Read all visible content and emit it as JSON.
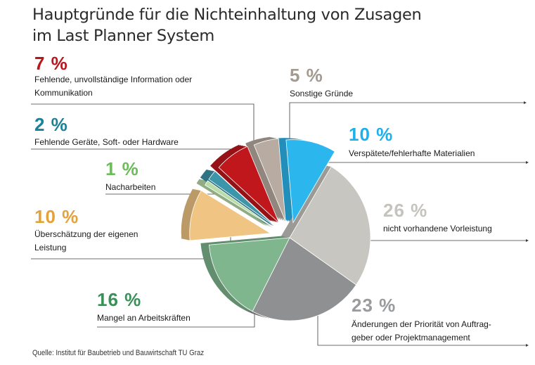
{
  "title_line1": "Hauptgründe für die Nichteinhaltung von Zusagen",
  "title_line2": "im Last Planner System",
  "source": "Quelle: Institut für Baubetrieb und Bauwirtschaft TU Graz",
  "chart_data": {
    "type": "pie",
    "title": "Hauptgründe für die Nichteinhaltung von Zusagen im Last Planner System",
    "unit": "%",
    "slices": [
      {
        "name": "Verspätete/fehlerhafte Materialien",
        "value": 10,
        "pct_label": "10 %",
        "label": "Verspätete/fehlerhafte Materialien",
        "color": "#2bb7ee",
        "exploded": true
      },
      {
        "name": "nicht vorhandene Vorleistung",
        "value": 26,
        "pct_label": "26 %",
        "label": "nicht vorhandene Vorleistung",
        "color": "#c8c6c0",
        "exploded": false
      },
      {
        "name": "Änderungen der Priorität von Auftraggeber oder Projektmanagement",
        "value": 23,
        "pct_label": "23 %",
        "label": "Änderungen der Priorität von Auftrag-",
        "label2": "geber oder Projektmanagement",
        "color": "#8f9092",
        "exploded": false
      },
      {
        "name": "Mangel an Arbeitskräften",
        "value": 16,
        "pct_label": "16 %",
        "label": "Mangel an Arbeitskräften",
        "color": "#7fb68e",
        "exploded": false
      },
      {
        "name": "Überschätzung der eigenen Leistung",
        "value": 10,
        "pct_label": "10 %",
        "label": "Überschätzung der eigenen",
        "label2": "Leistung",
        "color": "#f0c584",
        "exploded": true
      },
      {
        "name": "Nacharbeiten",
        "value": 1,
        "pct_label": "1 %",
        "label": "Nacharbeiten",
        "color": "#b9dca9",
        "exploded": true
      },
      {
        "name": "Fehlende Geräte, Soft- oder Hardware",
        "value": 2,
        "pct_label": "2 %",
        "label": "Fehlende Geräte, Soft- oder Hardware",
        "color": "#3d95a9",
        "exploded": true
      },
      {
        "name": "Fehlende, unvollständige Information oder Kommunikation",
        "value": 7,
        "pct_label": "7 %",
        "label": "Fehlende, unvollständige Information oder",
        "label2": "Kommunikation",
        "color": "#c0171d",
        "exploded": true
      },
      {
        "name": "Sonstige Gründe",
        "value": 5,
        "pct_label": "5 %",
        "label": "Sonstige Gründe",
        "color": "#b8aca2",
        "exploded": true
      }
    ],
    "pct_colors": {
      "materialien": "#1fb0ea",
      "vorleistung": "#c5c3bd",
      "prioritaet": "#9a9b9d",
      "arbeitskraefte": "#3a9158",
      "ueberschaetzung": "#e3a23a",
      "nacharbeiten": "#6dbb5a",
      "geraete": "#1b8196",
      "information": "#b8151c",
      "sonstige": "#a39a90"
    }
  }
}
